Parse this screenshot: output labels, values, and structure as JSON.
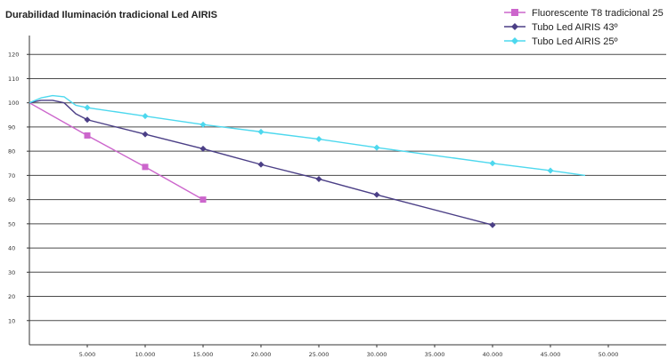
{
  "chart_data": {
    "type": "line",
    "title": "Durabilidad Iluminación tradicional Led AIRIS",
    "xlabel": "",
    "ylabel": "",
    "xlim": [
      0,
      55000
    ],
    "ylim": [
      0,
      130
    ],
    "x_ticks": [
      5000,
      10000,
      15000,
      20000,
      25000,
      30000,
      35000,
      40000,
      45000,
      50000
    ],
    "x_tick_labels": [
      "5.000",
      "10.000",
      "15.000",
      "20.000",
      "25.000",
      "30.000",
      "35.000",
      "40.000",
      "45.000",
      "50.000"
    ],
    "y_ticks": [
      10,
      20,
      30,
      40,
      50,
      60,
      70,
      80,
      90,
      100,
      110,
      120
    ],
    "y_tick_labels": [
      "10",
      "20",
      "30",
      "40",
      "50",
      "60",
      "70",
      "80",
      "90",
      "100",
      "110",
      "120"
    ],
    "grid": "horizontal",
    "legend_position": "top-right",
    "series": [
      {
        "name": "Fluorescente T8 tradicional 25",
        "color": "#cc66cc",
        "marker": "square",
        "x": [
          0,
          5000,
          10000,
          15000
        ],
        "y": [
          100,
          86.5,
          73.5,
          60
        ],
        "markers_at": [
          5000,
          10000,
          15000
        ]
      },
      {
        "name": "Tubo Led AIRIS 43º",
        "color": "#4b3f86",
        "marker": "diamond",
        "x": [
          0,
          1000,
          2000,
          3000,
          4000,
          5000,
          10000,
          15000,
          20000,
          25000,
          30000,
          40000
        ],
        "y": [
          100,
          101,
          101,
          100,
          95.5,
          93,
          87,
          81,
          74.5,
          68.5,
          62,
          49.5
        ],
        "markers_at": [
          5000,
          10000,
          15000,
          20000,
          25000,
          30000,
          40000
        ]
      },
      {
        "name": "Tubo Led AIRIS 25º",
        "color": "#4dd8ee",
        "marker": "diamond",
        "x": [
          0,
          1000,
          2000,
          3000,
          4000,
          5000,
          10000,
          15000,
          20000,
          25000,
          30000,
          40000,
          45000,
          48000
        ],
        "y": [
          100,
          102,
          103,
          102.5,
          99,
          98,
          94.5,
          91,
          88,
          85,
          81.5,
          75,
          72,
          70
        ],
        "markers_at": [
          5000,
          10000,
          15000,
          20000,
          25000,
          30000,
          40000,
          45000
        ]
      }
    ]
  }
}
